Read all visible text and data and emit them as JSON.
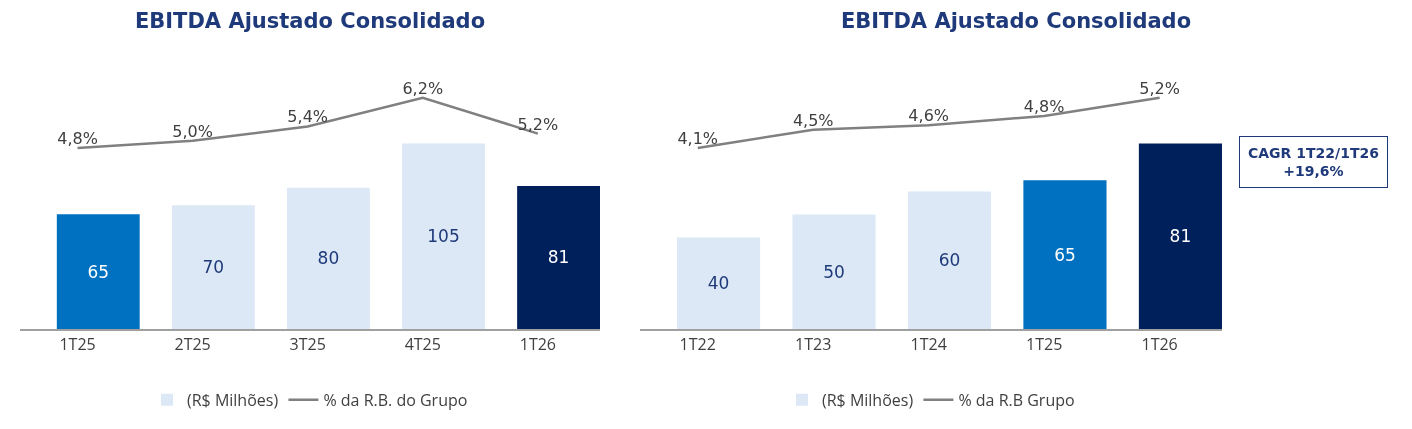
{
  "chart_data": [
    {
      "type": "bar",
      "title": "EBITDA Ajustado Consolidado",
      "categories": [
        "1T25",
        "2T25",
        "3T25",
        "4T25",
        "1T26"
      ],
      "tick_labels": "x",
      "legend": "bottom",
      "grid": false,
      "marker": "none",
      "series": [
        {
          "name": "(R$ Milhões)",
          "color": "#dce8f5",
          "colors": [
            "#0070c0",
            "#dce8f5",
            "#dce8f5",
            "#dce8f5",
            "#00205b"
          ],
          "values": [
            65,
            70,
            80,
            105,
            81
          ],
          "value_labels": [
            "65",
            "70",
            "80",
            "105",
            "81"
          ]
        },
        {
          "name": "% da R.B. do Grupo",
          "type": "line",
          "axis": "y2",
          "color": "#808080",
          "values": [
            4.8,
            5.0,
            5.4,
            6.2,
            5.2
          ],
          "value_labels": [
            "4,8%",
            "5,0%",
            "5,4%",
            "6,2%",
            "5,2%"
          ]
        }
      ]
    },
    {
      "type": "bar",
      "title": "EBITDA Ajustado Consolidado",
      "categories": [
        "1T22",
        "1T23",
        "1T24",
        "1T25",
        "1T26"
      ],
      "tick_labels": "x",
      "legend": "bottom",
      "grid": false,
      "marker": "none",
      "annotations": [
        "CAGR 1T22/1T26\n+19,6%"
      ],
      "series": [
        {
          "name": "(R$ Milhões)",
          "color": "#dce8f5",
          "colors": [
            "#dce8f5",
            "#dce8f5",
            "#dce8f5",
            "#0070c0",
            "#00205b"
          ],
          "values": [
            40,
            50,
            60,
            65,
            81
          ],
          "value_labels": [
            "40",
            "50",
            "60",
            "65",
            "81"
          ]
        },
        {
          "name": "% da R.B Grupo",
          "type": "line",
          "axis": "y2",
          "color": "#808080",
          "values": [
            4.1,
            4.5,
            4.6,
            4.8,
            5.2
          ],
          "value_labels": [
            "4,1%",
            "4,5%",
            "4,6%",
            "4,8%",
            "5,2%"
          ]
        }
      ]
    }
  ]
}
